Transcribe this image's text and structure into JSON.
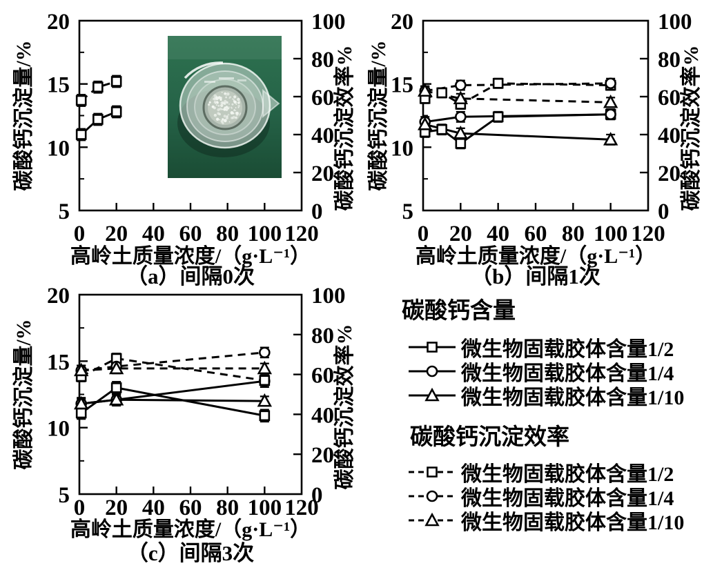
{
  "page": {
    "background": "#ffffff",
    "ink": "#000000"
  },
  "photo_colors": {
    "bench_green_top": "#2e7250",
    "bench_green_bottom": "#1a4c34",
    "glass": "#e0eae3",
    "beaker_bottom": "#a7b4aa",
    "precipitate": "#f2f6f1"
  },
  "legend": {
    "content_heading": "碳酸钙含量",
    "efficiency_heading": "碳酸钙沉淀效率",
    "items": [
      {
        "label": "微生物固载胶体含量1/2",
        "marker": "square",
        "dashed": false
      },
      {
        "label": "微生物固载胶体含量1/4",
        "marker": "circle",
        "dashed": false
      },
      {
        "label": "微生物固载胶体含量1/10",
        "marker": "triangle",
        "dashed": false
      },
      {
        "label": "微生物固载胶体含量1/2",
        "marker": "square",
        "dashed": true
      },
      {
        "label": "微生物固载胶体含量1/4",
        "marker": "circle",
        "dashed": true
      },
      {
        "label": "微生物固载胶体含量1/10",
        "marker": "triangle",
        "dashed": true
      }
    ]
  },
  "chart_data": [
    {
      "type": "line",
      "panel": "a",
      "caption": "（a）间隔0次",
      "xlabel": "高岭土质量浓度/（g·L⁻¹）",
      "ylabel_left": "碳酸钙沉淀量/%",
      "ylabel_right": "碳酸钙沉淀效率%",
      "xlim": [
        0,
        120
      ],
      "xticks": [
        0,
        20,
        40,
        60,
        80,
        100,
        120
      ],
      "ylim_left": [
        5,
        20
      ],
      "yticks_left": [
        5,
        10,
        15,
        20
      ],
      "yminor_step_left": 2.5,
      "ylim_right": [
        0,
        100
      ],
      "yticks_right": [
        0,
        20,
        40,
        60,
        80,
        100
      ],
      "photo_inset": {
        "present": true,
        "content": "beaker-with-caco3-precipitate-on-green-bench"
      },
      "series": [
        {
          "group": "碳酸钙含量",
          "legend_label": "微生物固载胶体含量1/2",
          "axis": "left",
          "marker": "square",
          "dashed": false,
          "x": [
            1,
            10,
            20
          ],
          "y": [
            11.0,
            12.2,
            12.8
          ],
          "yerr": 0.45
        },
        {
          "group": "碳酸钙沉淀效率",
          "legend_label": "微生物固载胶体含量1/2",
          "axis": "right",
          "marker": "square",
          "dashed": true,
          "x": [
            1,
            10,
            20
          ],
          "y": [
            58,
            65,
            68
          ],
          "yerr": 3
        }
      ]
    },
    {
      "type": "line",
      "panel": "b",
      "caption": "（b）间隔1次",
      "xlabel": "高岭土质量浓度/（g·L⁻¹）",
      "ylabel_left": "碳酸钙沉淀量/%",
      "ylabel_right": "碳酸钙沉淀效率%",
      "xlim": [
        0,
        120
      ],
      "xticks": [
        0,
        20,
        40,
        60,
        80,
        100,
        120
      ],
      "ylim_left": [
        5,
        20
      ],
      "yticks_left": [
        5,
        10,
        15,
        20
      ],
      "yminor_step_left": 2.5,
      "ylim_right": [
        0,
        100
      ],
      "yticks_right": [
        0,
        20,
        40,
        60,
        80,
        100
      ],
      "photo_inset": {
        "present": false
      },
      "series": [
        {
          "group": "碳酸钙含量",
          "legend_label": "微生物固载胶体含量1/2",
          "axis": "left",
          "marker": "square",
          "dashed": false,
          "x": [
            1,
            10,
            20,
            40,
            100
          ],
          "y": [
            11.2,
            11.4,
            10.3,
            12.4,
            12.6
          ],
          "yerr": 0.4
        },
        {
          "group": "碳酸钙含量",
          "legend_label": "微生物固载胶体含量1/4",
          "axis": "left",
          "marker": "circle",
          "dashed": false,
          "x": [
            1,
            20,
            100
          ],
          "y": [
            12.0,
            12.4,
            12.6
          ],
          "yerr": 0.4
        },
        {
          "group": "碳酸钙含量",
          "legend_label": "微生物固载胶体含量1/10",
          "axis": "left",
          "marker": "triangle",
          "dashed": false,
          "x": [
            1,
            20,
            100
          ],
          "y": [
            11.8,
            11.1,
            10.6
          ],
          "yerr": 0.4
        },
        {
          "group": "碳酸钙沉淀效率",
          "legend_label": "微生物固载胶体含量1/2",
          "axis": "right",
          "marker": "square",
          "dashed": true,
          "x": [
            1,
            10,
            20,
            40,
            100
          ],
          "y": [
            59,
            62,
            56,
            67,
            66
          ],
          "yerr": 2.5
        },
        {
          "group": "碳酸钙沉淀效率",
          "legend_label": "微生物固载胶体含量1/4",
          "axis": "right",
          "marker": "circle",
          "dashed": true,
          "x": [
            1,
            20,
            100
          ],
          "y": [
            63,
            66,
            67
          ],
          "yerr": 2.5
        },
        {
          "group": "碳酸钙沉淀效率",
          "legend_label": "微生物固载胶体含量1/10",
          "axis": "right",
          "marker": "triangle",
          "dashed": true,
          "x": [
            1,
            20,
            100
          ],
          "y": [
            63,
            59,
            57
          ],
          "yerr": 2.5
        }
      ]
    },
    {
      "type": "line",
      "panel": "c",
      "caption": "（c）间隔3次",
      "xlabel": "高岭土质量浓度/（g·L⁻¹）",
      "ylabel_left": "碳酸钙沉淀量/%",
      "ylabel_right": "碳酸钙沉淀效率%",
      "xlim": [
        0,
        120
      ],
      "xticks": [
        0,
        20,
        40,
        60,
        80,
        100,
        120
      ],
      "ylim_left": [
        5,
        20
      ],
      "yticks_left": [
        5,
        10,
        15,
        20
      ],
      "yminor_step_left": 2.5,
      "ylim_right": [
        0,
        100
      ],
      "yticks_right": [
        0,
        20,
        40,
        60,
        80,
        100
      ],
      "photo_inset": {
        "present": false
      },
      "series": [
        {
          "group": "碳酸钙含量",
          "legend_label": "微生物固载胶体含量1/2",
          "axis": "left",
          "marker": "square",
          "dashed": false,
          "x": [
            1,
            20,
            100
          ],
          "y": [
            11.1,
            13.0,
            10.9
          ],
          "yerr": 0.45
        },
        {
          "group": "碳酸钙含量",
          "legend_label": "微生物固载胶体含量1/4",
          "axis": "left",
          "marker": "circle",
          "dashed": false,
          "x": [
            1,
            20,
            100
          ],
          "y": [
            11.8,
            12.1,
            13.5
          ],
          "yerr": 0.45
        },
        {
          "group": "碳酸钙含量",
          "legend_label": "微生物固载胶体含量1/10",
          "axis": "left",
          "marker": "triangle",
          "dashed": false,
          "x": [
            1,
            20,
            100
          ],
          "y": [
            11.8,
            12.1,
            12.0
          ],
          "yerr": 0.35
        },
        {
          "group": "碳酸钙沉淀效率",
          "legend_label": "微生物固载胶体含量1/2",
          "axis": "right",
          "marker": "square",
          "dashed": true,
          "x": [
            1,
            20,
            100
          ],
          "y": [
            59,
            68,
            57
          ],
          "yerr": 2.5
        },
        {
          "group": "碳酸钙沉淀效率",
          "legend_label": "微生物固载胶体含量1/4",
          "axis": "right",
          "marker": "circle",
          "dashed": true,
          "x": [
            1,
            20,
            100
          ],
          "y": [
            62,
            64,
            71
          ],
          "yerr": 2.5
        },
        {
          "group": "碳酸钙沉淀效率",
          "legend_label": "微生物固载胶体含量1/10",
          "axis": "right",
          "marker": "triangle",
          "dashed": true,
          "x": [
            1,
            20,
            100
          ],
          "y": [
            62,
            63,
            63
          ],
          "yerr": 2.5
        }
      ]
    }
  ]
}
